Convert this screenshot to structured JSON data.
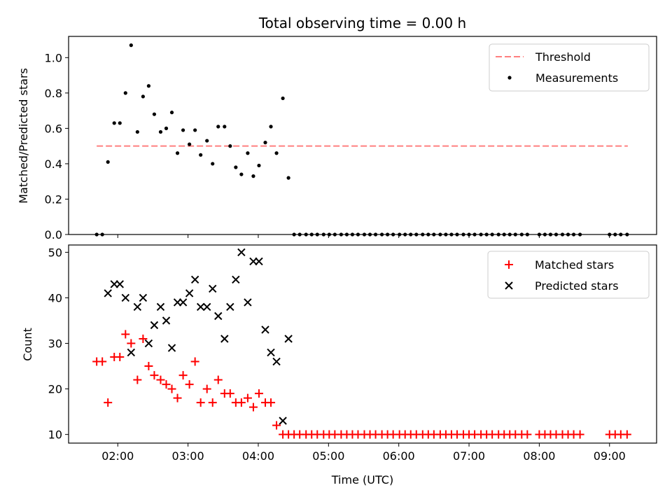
{
  "figure_title": "Total observing time = 0.00 h",
  "chart_data": [
    {
      "type": "scatter",
      "title": "Total observing time = 0.00 h",
      "xlabel": "",
      "ylabel": "Matched/Predicted stars",
      "xlim": [
        1.3,
        9.67
      ],
      "ylim": [
        0,
        1.12
      ],
      "xtick_values": [
        2,
        3,
        4,
        5,
        6,
        7,
        8,
        9
      ],
      "xtick_labels": [
        "02:00",
        "03:00",
        "04:00",
        "05:00",
        "06:00",
        "07:00",
        "08:00",
        "09:00"
      ],
      "ytick_values": [
        0.0,
        0.2,
        0.4,
        0.6,
        0.8,
        1.0
      ],
      "ytick_labels": [
        "0.0",
        "0.2",
        "0.4",
        "0.6",
        "0.8",
        "1.0"
      ],
      "legend": {
        "position": "top-right",
        "threshold_label": "Threshold",
        "measurements_label": "Measurements"
      },
      "threshold": {
        "name": "Threshold",
        "value": 0.5,
        "x": [
          1.7,
          9.26
        ],
        "color": "#ff7f7f"
      },
      "series": [
        {
          "name": "Measurements",
          "color": "#000000",
          "points": [
            [
              1.7,
              0.0
            ],
            [
              1.78,
              0.0
            ],
            [
              1.86,
              0.41
            ],
            [
              1.95,
              0.63
            ],
            [
              2.03,
              0.63
            ],
            [
              2.11,
              0.8
            ],
            [
              2.19,
              1.07
            ],
            [
              2.28,
              0.58
            ],
            [
              2.36,
              0.78
            ],
            [
              2.44,
              0.84
            ],
            [
              2.52,
              0.68
            ],
            [
              2.61,
              0.58
            ],
            [
              2.69,
              0.6
            ],
            [
              2.77,
              0.69
            ],
            [
              2.85,
              0.46
            ],
            [
              2.93,
              0.59
            ],
            [
              3.02,
              0.51
            ],
            [
              3.1,
              0.59
            ],
            [
              3.18,
              0.45
            ],
            [
              3.27,
              0.53
            ],
            [
              3.35,
              0.4
            ],
            [
              3.43,
              0.61
            ],
            [
              3.52,
              0.61
            ],
            [
              3.6,
              0.5
            ],
            [
              3.68,
              0.38
            ],
            [
              3.76,
              0.34
            ],
            [
              3.85,
              0.46
            ],
            [
              3.93,
              0.33
            ],
            [
              4.01,
              0.39
            ],
            [
              4.1,
              0.52
            ],
            [
              4.18,
              0.61
            ],
            [
              4.26,
              0.46
            ],
            [
              4.35,
              0.77
            ],
            [
              4.43,
              0.32
            ],
            [
              4.51,
              0.0
            ],
            [
              4.59,
              0.0
            ],
            [
              4.68,
              0.0
            ],
            [
              4.76,
              0.0
            ],
            [
              4.84,
              0.0
            ],
            [
              4.93,
              0.0
            ],
            [
              5.01,
              0.0
            ],
            [
              5.09,
              0.0
            ],
            [
              5.18,
              0.0
            ],
            [
              5.26,
              0.0
            ],
            [
              5.34,
              0.0
            ],
            [
              5.42,
              0.0
            ],
            [
              5.51,
              0.0
            ],
            [
              5.59,
              0.0
            ],
            [
              5.67,
              0.0
            ],
            [
              5.76,
              0.0
            ],
            [
              5.84,
              0.0
            ],
            [
              5.92,
              0.0
            ],
            [
              6.01,
              0.0
            ],
            [
              6.09,
              0.0
            ],
            [
              6.17,
              0.0
            ],
            [
              6.25,
              0.0
            ],
            [
              6.34,
              0.0
            ],
            [
              6.42,
              0.0
            ],
            [
              6.5,
              0.0
            ],
            [
              6.59,
              0.0
            ],
            [
              6.67,
              0.0
            ],
            [
              6.75,
              0.0
            ],
            [
              6.83,
              0.0
            ],
            [
              6.92,
              0.0
            ],
            [
              7.0,
              0.0
            ],
            [
              7.08,
              0.0
            ],
            [
              7.17,
              0.0
            ],
            [
              7.25,
              0.0
            ],
            [
              7.33,
              0.0
            ],
            [
              7.42,
              0.0
            ],
            [
              7.5,
              0.0
            ],
            [
              7.58,
              0.0
            ],
            [
              7.66,
              0.0
            ],
            [
              7.75,
              0.0
            ],
            [
              7.83,
              0.0
            ],
            [
              8.0,
              0.0
            ],
            [
              8.08,
              0.0
            ],
            [
              8.16,
              0.0
            ],
            [
              8.24,
              0.0
            ],
            [
              8.33,
              0.0
            ],
            [
              8.41,
              0.0
            ],
            [
              8.49,
              0.0
            ],
            [
              8.58,
              0.0
            ],
            [
              9.0,
              0.0
            ],
            [
              9.08,
              0.0
            ],
            [
              9.16,
              0.0
            ],
            [
              9.25,
              0.0
            ]
          ]
        }
      ]
    },
    {
      "type": "scatter",
      "title": "",
      "xlabel": "Time (UTC)",
      "ylabel": "Count",
      "xlim": [
        1.3,
        9.67
      ],
      "ylim": [
        8.1,
        51.6
      ],
      "xtick_values": [
        2,
        3,
        4,
        5,
        6,
        7,
        8,
        9
      ],
      "xtick_labels": [
        "02:00",
        "03:00",
        "04:00",
        "05:00",
        "06:00",
        "07:00",
        "08:00",
        "09:00"
      ],
      "ytick_values": [
        10,
        20,
        30,
        40,
        50
      ],
      "ytick_labels": [
        "10",
        "20",
        "30",
        "40",
        "50"
      ],
      "legend": {
        "position": "top-right",
        "matched_label": "Matched stars",
        "predicted_label": "Predicted stars"
      },
      "series": [
        {
          "name": "Matched stars",
          "marker": "plus",
          "color": "#ff0000",
          "points": [
            [
              1.7,
              26
            ],
            [
              1.78,
              26
            ],
            [
              1.86,
              17
            ],
            [
              1.95,
              27
            ],
            [
              2.03,
              27
            ],
            [
              2.11,
              32
            ],
            [
              2.19,
              30
            ],
            [
              2.28,
              22
            ],
            [
              2.36,
              31
            ],
            [
              2.44,
              25
            ],
            [
              2.52,
              23
            ],
            [
              2.61,
              22
            ],
            [
              2.69,
              21
            ],
            [
              2.77,
              20
            ],
            [
              2.85,
              18
            ],
            [
              2.93,
              23
            ],
            [
              3.02,
              21
            ],
            [
              3.1,
              26
            ],
            [
              3.18,
              17
            ],
            [
              3.27,
              20
            ],
            [
              3.35,
              17
            ],
            [
              3.43,
              22
            ],
            [
              3.52,
              19
            ],
            [
              3.6,
              19
            ],
            [
              3.68,
              17
            ],
            [
              3.76,
              17
            ],
            [
              3.85,
              18
            ],
            [
              3.93,
              16
            ],
            [
              4.01,
              19
            ],
            [
              4.1,
              17
            ],
            [
              4.18,
              17
            ],
            [
              4.26,
              12
            ],
            [
              4.35,
              10
            ],
            [
              4.43,
              10
            ],
            [
              4.51,
              10
            ],
            [
              4.59,
              10
            ],
            [
              4.68,
              10
            ],
            [
              4.76,
              10
            ],
            [
              4.84,
              10
            ],
            [
              4.93,
              10
            ],
            [
              5.01,
              10
            ],
            [
              5.09,
              10
            ],
            [
              5.18,
              10
            ],
            [
              5.26,
              10
            ],
            [
              5.34,
              10
            ],
            [
              5.42,
              10
            ],
            [
              5.51,
              10
            ],
            [
              5.59,
              10
            ],
            [
              5.67,
              10
            ],
            [
              5.76,
              10
            ],
            [
              5.84,
              10
            ],
            [
              5.92,
              10
            ],
            [
              6.01,
              10
            ],
            [
              6.09,
              10
            ],
            [
              6.17,
              10
            ],
            [
              6.25,
              10
            ],
            [
              6.34,
              10
            ],
            [
              6.42,
              10
            ],
            [
              6.5,
              10
            ],
            [
              6.59,
              10
            ],
            [
              6.67,
              10
            ],
            [
              6.75,
              10
            ],
            [
              6.83,
              10
            ],
            [
              6.92,
              10
            ],
            [
              7.0,
              10
            ],
            [
              7.08,
              10
            ],
            [
              7.17,
              10
            ],
            [
              7.25,
              10
            ],
            [
              7.33,
              10
            ],
            [
              7.42,
              10
            ],
            [
              7.5,
              10
            ],
            [
              7.58,
              10
            ],
            [
              7.66,
              10
            ],
            [
              7.75,
              10
            ],
            [
              7.83,
              10
            ],
            [
              8.0,
              10
            ],
            [
              8.08,
              10
            ],
            [
              8.16,
              10
            ],
            [
              8.24,
              10
            ],
            [
              8.33,
              10
            ],
            [
              8.41,
              10
            ],
            [
              8.49,
              10
            ],
            [
              8.58,
              10
            ],
            [
              9.0,
              10
            ],
            [
              9.08,
              10
            ],
            [
              9.16,
              10
            ],
            [
              9.25,
              10
            ]
          ]
        },
        {
          "name": "Predicted stars",
          "marker": "x",
          "color": "#000000",
          "points": [
            [
              1.86,
              41
            ],
            [
              1.95,
              43
            ],
            [
              2.03,
              43
            ],
            [
              2.11,
              40
            ],
            [
              2.19,
              28
            ],
            [
              2.28,
              38
            ],
            [
              2.36,
              40
            ],
            [
              2.44,
              30
            ],
            [
              2.52,
              34
            ],
            [
              2.61,
              38
            ],
            [
              2.69,
              35
            ],
            [
              2.77,
              29
            ],
            [
              2.85,
              39
            ],
            [
              2.93,
              39
            ],
            [
              3.02,
              41
            ],
            [
              3.1,
              44
            ],
            [
              3.18,
              38
            ],
            [
              3.27,
              38
            ],
            [
              3.35,
              42
            ],
            [
              3.43,
              36
            ],
            [
              3.52,
              31
            ],
            [
              3.6,
              38
            ],
            [
              3.68,
              44
            ],
            [
              3.76,
              50
            ],
            [
              3.85,
              39
            ],
            [
              3.93,
              48
            ],
            [
              4.01,
              48
            ],
            [
              4.1,
              33
            ],
            [
              4.18,
              28
            ],
            [
              4.26,
              26
            ],
            [
              4.35,
              13
            ],
            [
              4.43,
              31
            ]
          ]
        }
      ]
    }
  ]
}
